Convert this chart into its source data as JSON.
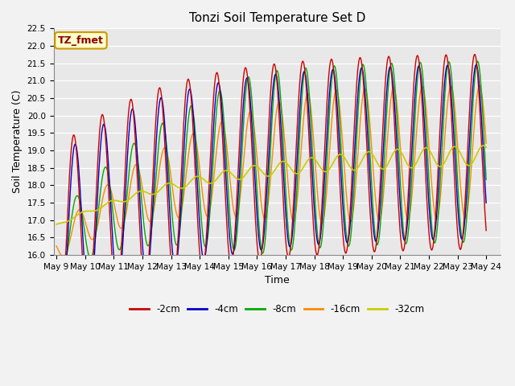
{
  "title": "Tonzi Soil Temperature Set D",
  "xlabel": "Time",
  "ylabel": "Soil Temperature (C)",
  "annotation": "TZ_fmet",
  "ylim": [
    16.0,
    22.5
  ],
  "start_day": 9,
  "end_day": 24,
  "colors": {
    "-2cm": "#cc0000",
    "-4cm": "#0000cc",
    "-8cm": "#00aa00",
    "-16cm": "#ff8800",
    "-32cm": "#cccc00"
  },
  "legend_labels": [
    "-2cm",
    "-4cm",
    "-8cm",
    "-16cm",
    "-32cm"
  ],
  "fig_width": 6.4,
  "fig_height": 4.8,
  "dpi": 100,
  "title_fontsize": 11,
  "axis_label_fontsize": 9,
  "tick_fontsize": 7.5
}
